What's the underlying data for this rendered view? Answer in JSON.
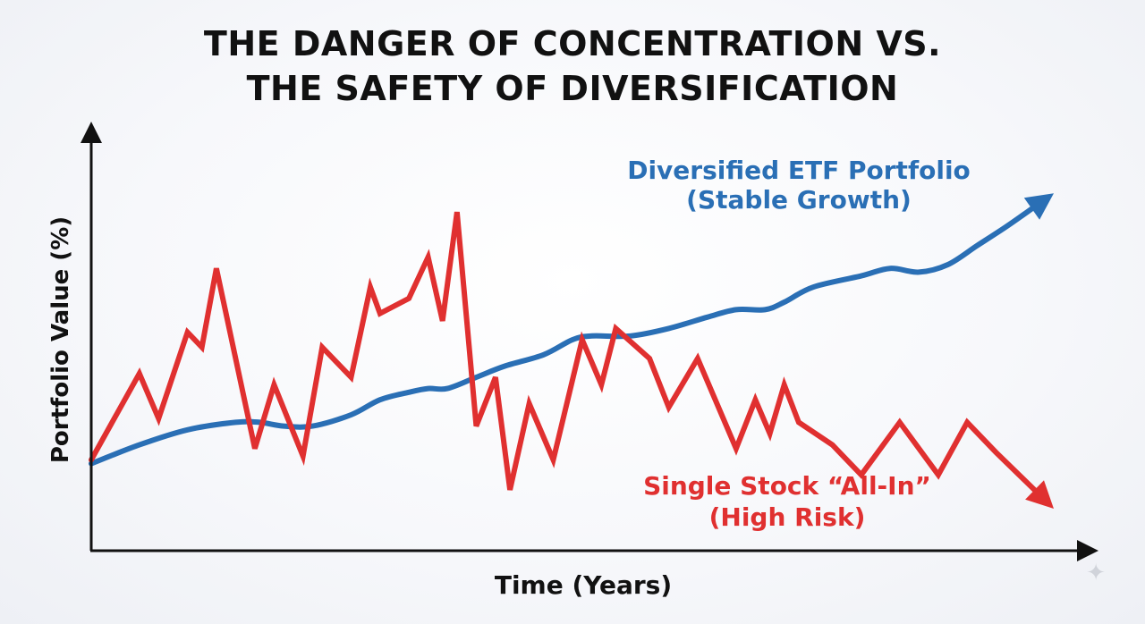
{
  "title": {
    "line1": "THE DANGER OF CONCENTRATION VS.",
    "line2": "THE SAFETY OF DIVERSIFICATION"
  },
  "chart_data": {
    "type": "line",
    "title": "THE DANGER OF CONCENTRATION VS. THE SAFETY OF DIVERSIFICATION",
    "xlabel": "Time (Years)",
    "ylabel": "Portfolio Value (%)",
    "xlim": [
      0,
      100
    ],
    "ylim": [
      0,
      100
    ],
    "grid": false,
    "series": [
      {
        "name": "Diversified ETF Portfolio (Stable Growth)",
        "label_lines": [
          "Diversified ETF Portfolio",
          "(Stable Growth)"
        ],
        "color": "#2a6fb5",
        "trend": "up",
        "x": [
          0,
          5,
          10,
          15,
          17.5,
          20,
          23,
          27,
          30,
          33,
          35,
          37,
          40,
          43,
          47,
          50,
          52,
          56,
          60,
          64,
          67,
          70,
          72,
          75,
          80,
          83,
          86,
          89,
          92,
          95,
          100
        ],
        "values": [
          17,
          22,
          26,
          28,
          28,
          27,
          27,
          30,
          34,
          36,
          37,
          37,
          40,
          43,
          46,
          50,
          51,
          51,
          53,
          56,
          58,
          58,
          60,
          64,
          67,
          69,
          68,
          70,
          75,
          80,
          89
        ]
      },
      {
        "name": "Single Stock “All-In” (High Risk)",
        "label_lines": [
          "Single Stock “All-In”",
          "(High Risk)"
        ],
        "color": "#e03030",
        "trend": "down",
        "x": [
          0,
          5,
          7,
          10,
          11.5,
          13,
          17,
          19,
          22,
          24,
          27,
          29,
          30,
          33,
          35,
          36.5,
          38,
          40,
          42,
          43.5,
          45.5,
          48,
          51,
          53,
          54.5,
          58,
          60,
          63,
          67,
          69,
          70.5,
          72,
          73.5,
          77,
          80,
          84,
          88,
          91,
          94,
          100
        ],
        "values": [
          18,
          41,
          29,
          52,
          48,
          69,
          21,
          38,
          19,
          48,
          40,
          64,
          57,
          61,
          72,
          55,
          84,
          27,
          40,
          10,
          33,
          18,
          50,
          38,
          53,
          45,
          32,
          45,
          21,
          34,
          25,
          38,
          28,
          22,
          14,
          28,
          14,
          28,
          20,
          5
        ]
      }
    ]
  }
}
